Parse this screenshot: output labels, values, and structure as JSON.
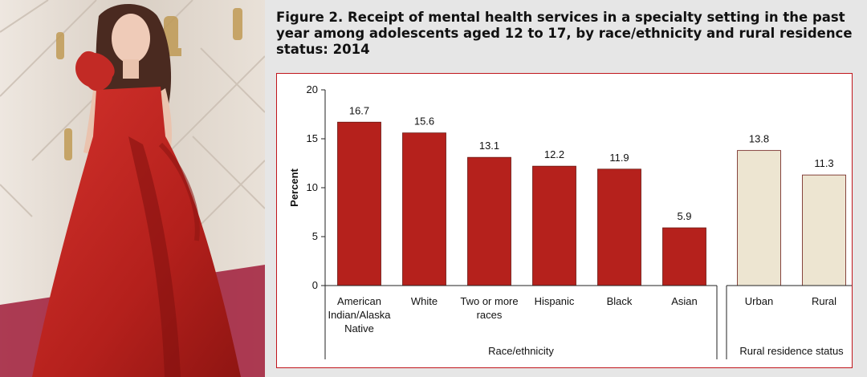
{
  "figure": {
    "title": "Figure 2. Receipt of mental health services in a specialty setting in the past year among adolescents aged 12 to 17, by race/ethnicity and rural residence status: 2014"
  },
  "chart_data": {
    "type": "bar",
    "title": "Figure 2. Receipt of mental health services in a specialty setting in the past year among adolescents aged 12 to 17, by race/ethnicity and rural residence status: 2014",
    "ylabel": "Percent",
    "ylim": [
      0,
      20
    ],
    "yticks": [
      0,
      5,
      10,
      15,
      20
    ],
    "grid": false,
    "groups": [
      {
        "label": "Race/ethnicity",
        "color": "#b5211c",
        "categories": [
          {
            "label": [
              "American",
              "Indian/Alaska",
              "Native"
            ],
            "value": 16.7
          },
          {
            "label": [
              "White"
            ],
            "value": 15.6
          },
          {
            "label": [
              "Two or more",
              "races"
            ],
            "value": 13.1
          },
          {
            "label": [
              "Hispanic"
            ],
            "value": 12.2
          },
          {
            "label": [
              "Black"
            ],
            "value": 11.9
          },
          {
            "label": [
              "Asian"
            ],
            "value": 5.9
          }
        ]
      },
      {
        "label": "Rural residence status",
        "color": "#ede5d1",
        "categories": [
          {
            "label": [
              "Urban"
            ],
            "value": 13.8
          },
          {
            "label": [
              "Rural"
            ],
            "value": 11.3
          }
        ]
      }
    ]
  }
}
